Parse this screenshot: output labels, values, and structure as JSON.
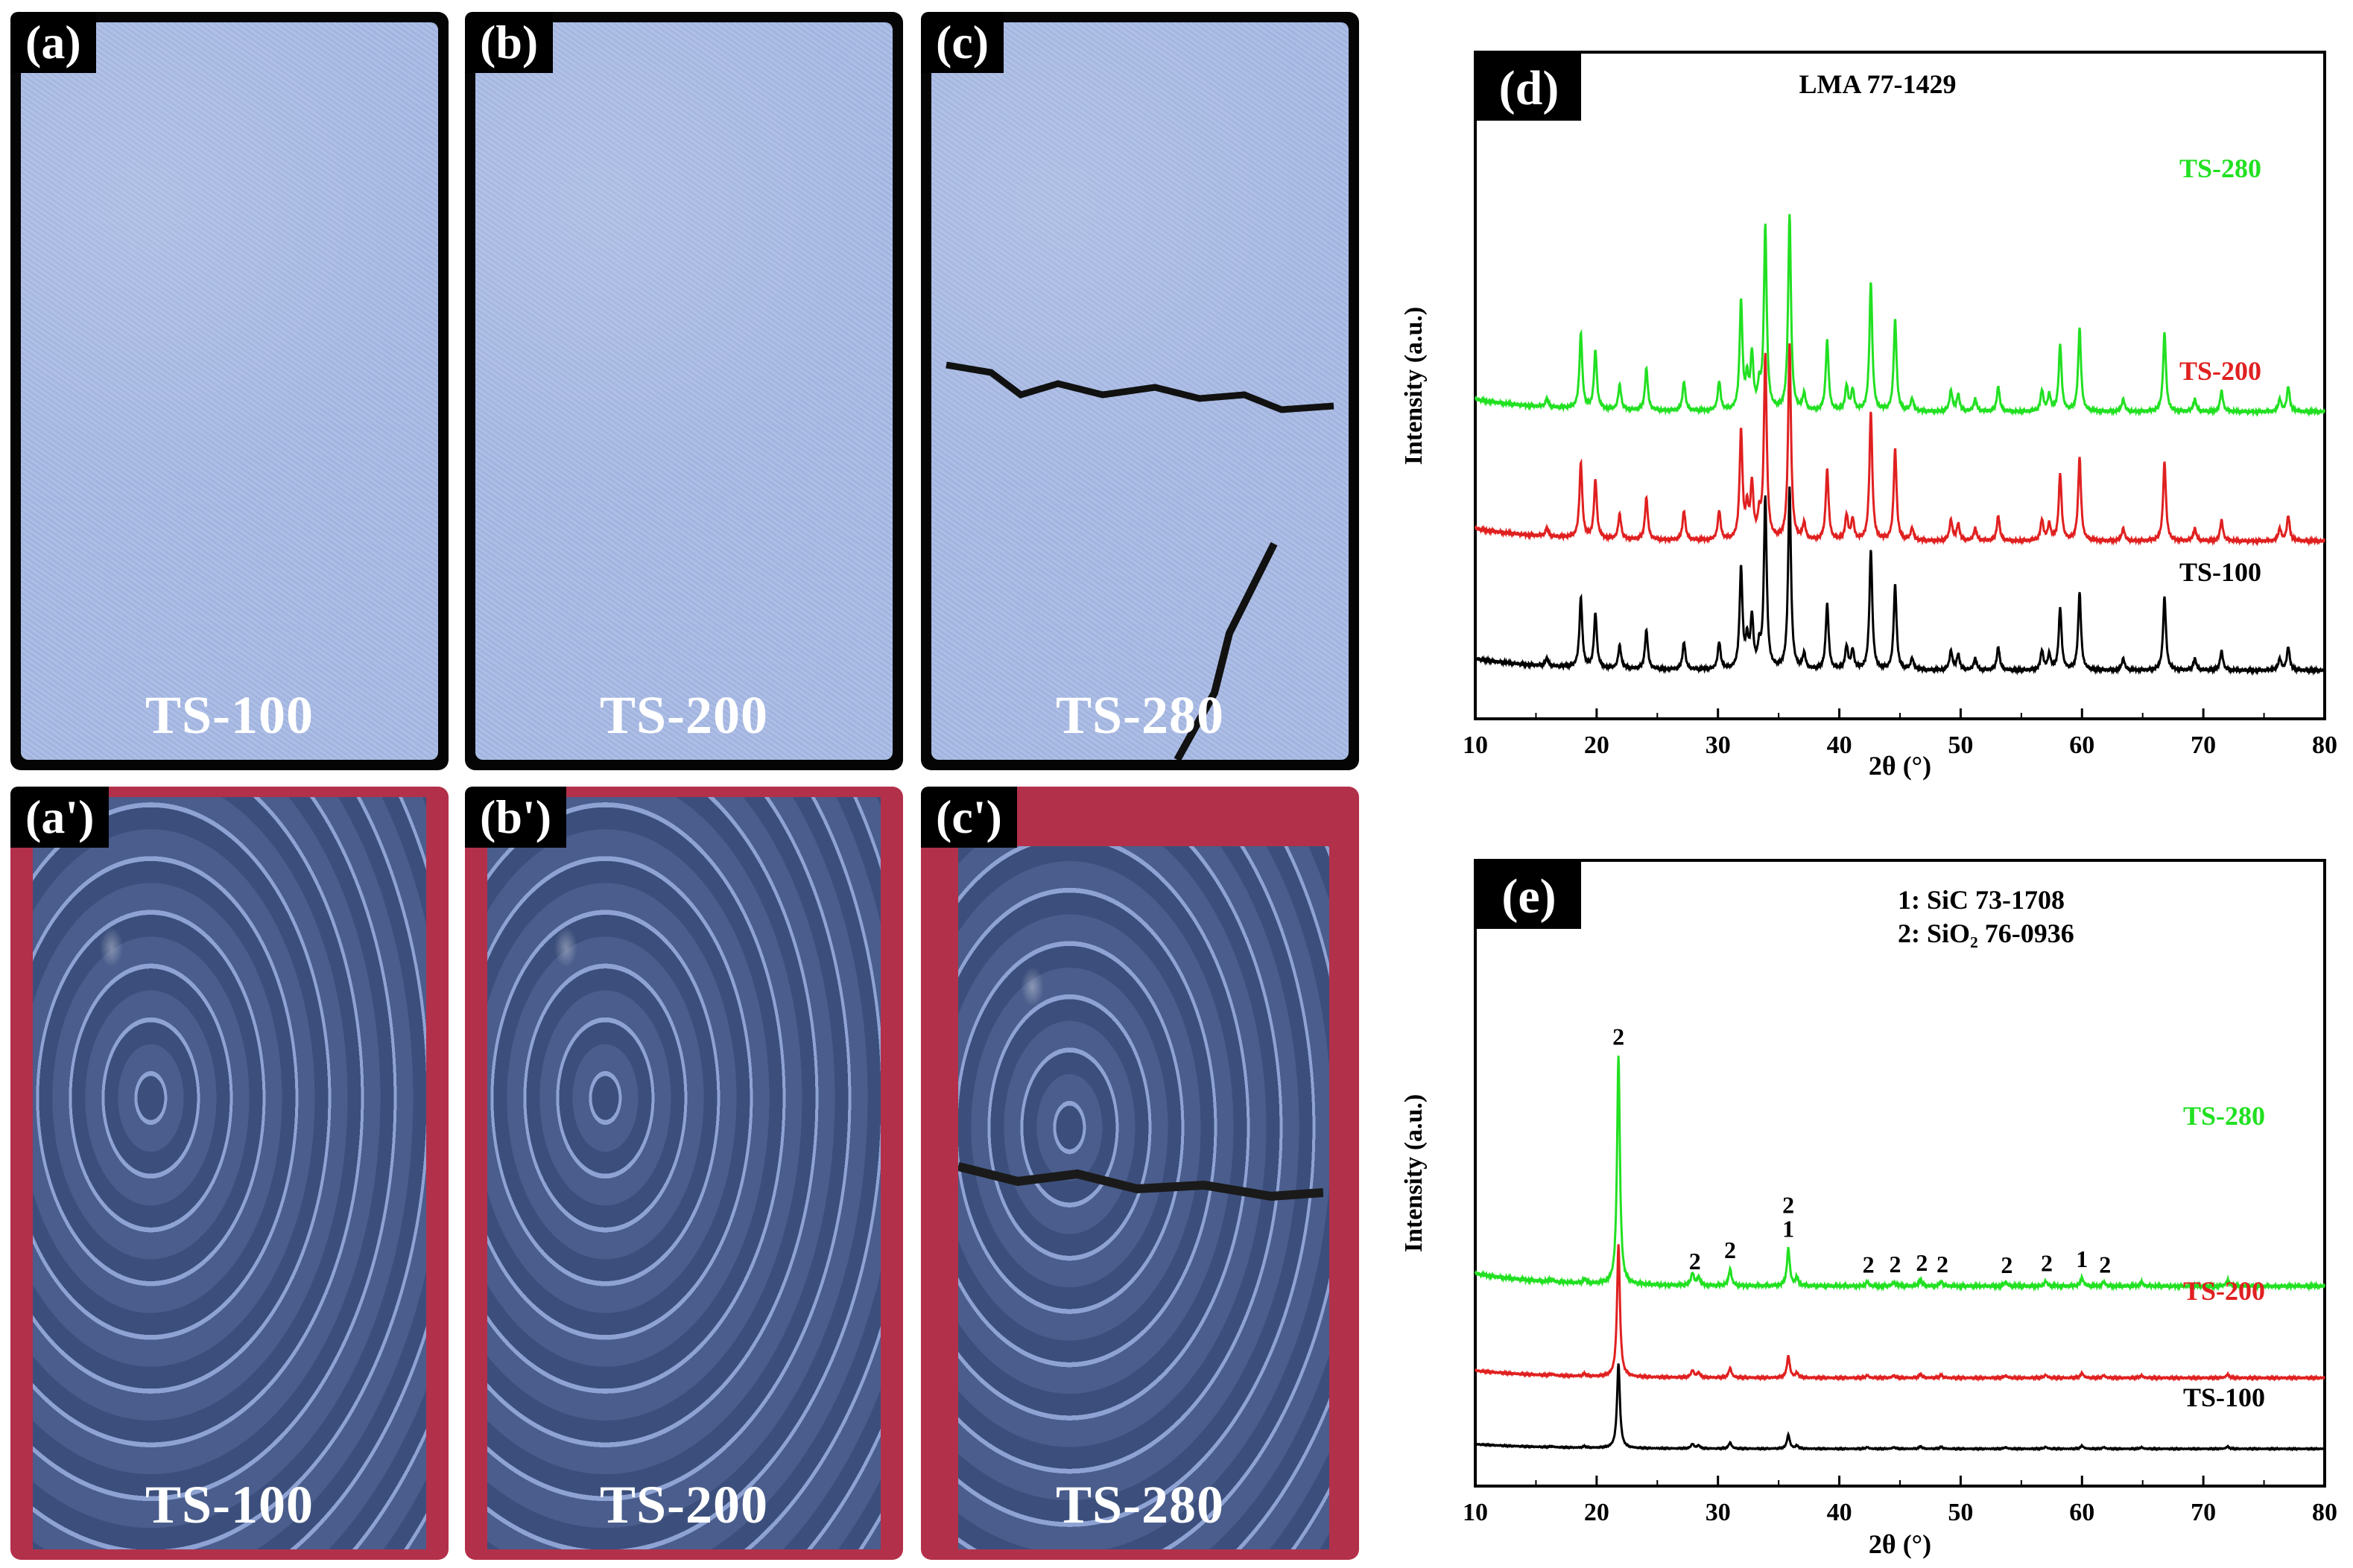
{
  "photos": {
    "top": [
      {
        "tag": "(a)",
        "label": "TS-100"
      },
      {
        "tag": "(b)",
        "label": "TS-200"
      },
      {
        "tag": "(c)",
        "label": "TS-280"
      }
    ],
    "bottom": [
      {
        "tag": "(a')",
        "label": "TS-100"
      },
      {
        "tag": "(b')",
        "label": "TS-200"
      },
      {
        "tag": "(c')",
        "label": "TS-280"
      }
    ]
  },
  "chart_data": [
    {
      "type": "line",
      "panel_tag": "(d)",
      "title": "LMA 77-1429",
      "xlabel": "2θ (°)",
      "ylabel": "Intensity (a.u.)",
      "xlim": [
        10,
        80
      ],
      "xticks": [
        "10",
        "20",
        "30",
        "40",
        "50",
        "60",
        "70",
        "80"
      ],
      "series": [
        {
          "name": "TS-280",
          "color": "#22e022",
          "offset": 0.62,
          "scale": 1.0
        },
        {
          "name": "TS-200",
          "color": "#e02020",
          "offset": 0.31,
          "scale": 1.0
        },
        {
          "name": "TS-100",
          "color": "#000000",
          "offset": 0.0,
          "scale": 0.93
        }
      ],
      "peaks": [
        [
          15.9,
          0.02
        ],
        [
          18.7,
          0.18
        ],
        [
          19.9,
          0.14
        ],
        [
          21.9,
          0.06
        ],
        [
          24.1,
          0.1
        ],
        [
          27.2,
          0.07
        ],
        [
          30.1,
          0.07
        ],
        [
          31.9,
          0.26
        ],
        [
          32.4,
          0.07
        ],
        [
          32.8,
          0.13
        ],
        [
          33.4,
          0.05
        ],
        [
          33.9,
          0.44
        ],
        [
          35.9,
          0.47
        ],
        [
          37.1,
          0.04
        ],
        [
          39.0,
          0.17
        ],
        [
          40.6,
          0.06
        ],
        [
          41.1,
          0.05
        ],
        [
          42.6,
          0.31
        ],
        [
          44.6,
          0.22
        ],
        [
          46.0,
          0.03
        ],
        [
          49.2,
          0.05
        ],
        [
          49.8,
          0.04
        ],
        [
          51.2,
          0.03
        ],
        [
          53.1,
          0.06
        ],
        [
          56.7,
          0.05
        ],
        [
          57.3,
          0.04
        ],
        [
          58.2,
          0.16
        ],
        [
          59.8,
          0.2
        ],
        [
          63.4,
          0.03
        ],
        [
          66.8,
          0.19
        ],
        [
          69.3,
          0.03
        ],
        [
          71.5,
          0.05
        ],
        [
          76.3,
          0.03
        ],
        [
          77.0,
          0.06
        ]
      ]
    },
    {
      "type": "line",
      "panel_tag": "(e)",
      "legend_lines": [
        "1: SiC 73-1708",
        "2: SiO₂ 76-0936"
      ],
      "xlabel": "2θ (°)",
      "ylabel": "Intensity (a.u.)",
      "xlim": [
        10,
        80
      ],
      "xticks": [
        "10",
        "20",
        "30",
        "40",
        "50",
        "60",
        "70",
        "80"
      ],
      "series": [
        {
          "name": "TS-280",
          "color": "#22e022",
          "offset": 0.39,
          "scale": 1.0
        },
        {
          "name": "TS-200",
          "color": "#e02020",
          "offset": 0.17,
          "scale": 0.58
        },
        {
          "name": "TS-100",
          "color": "#000000",
          "offset": 0.0,
          "scale": 0.37
        }
      ],
      "peaks": [
        [
          16.3,
          0.006
        ],
        [
          19.0,
          0.01
        ],
        [
          21.8,
          0.55
        ],
        [
          27.9,
          0.03
        ],
        [
          28.4,
          0.02
        ],
        [
          31.0,
          0.04
        ],
        [
          35.8,
          0.09
        ],
        [
          36.5,
          0.02
        ],
        [
          42.3,
          0.01
        ],
        [
          44.5,
          0.01
        ],
        [
          46.7,
          0.015
        ],
        [
          48.4,
          0.012
        ],
        [
          53.7,
          0.01
        ],
        [
          57.0,
          0.012
        ],
        [
          60.0,
          0.02
        ],
        [
          61.8,
          0.01
        ],
        [
          64.9,
          0.01
        ],
        [
          72.0,
          0.015
        ]
      ],
      "annotations": [
        {
          "x": 21.8,
          "text": "2"
        },
        {
          "x": 28.1,
          "text": "2"
        },
        {
          "x": 31.0,
          "text": "2"
        },
        {
          "x": 35.8,
          "text": "2",
          "text2": "1"
        },
        {
          "x": 42.4,
          "text": "2"
        },
        {
          "x": 44.6,
          "text": "2"
        },
        {
          "x": 46.8,
          "text": "2"
        },
        {
          "x": 48.5,
          "text": "2"
        },
        {
          "x": 53.8,
          "text": "2"
        },
        {
          "x": 57.1,
          "text": "2"
        },
        {
          "x": 60.0,
          "text": "1"
        },
        {
          "x": 61.9,
          "text": "2"
        }
      ]
    }
  ]
}
